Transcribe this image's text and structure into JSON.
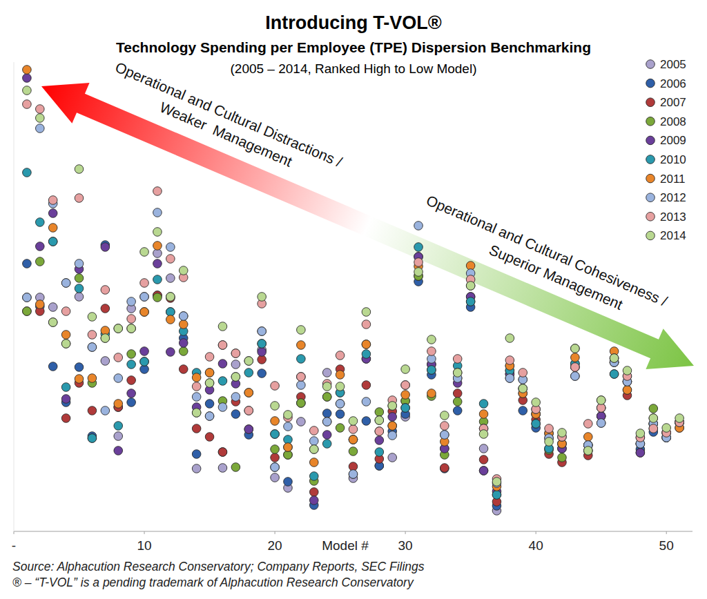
{
  "chart_data": {
    "type": "scatter",
    "title": "Introducing T-VOL®",
    "subtitle": [
      "Technology Spending per Employee (TPE) Dispersion Benchmarking",
      "(2005 – 2014, Ranked High to Low Model)"
    ],
    "x_label": "Model #",
    "annotations": [
      {
        "lines": [
          "Operational and Cultural Distractions /",
          "Weaker  Management"
        ]
      },
      {
        "lines": [
          "Operational and Cultural Cohesiveness /",
          "Superior Management"
        ]
      }
    ],
    "source": [
      "Source: Alphacution Research Conservatory; Company Reports, SEC Filings",
      "® – “T-VOL” is a pending trademark of Alphacution Research Conservatory"
    ],
    "x": [
      1,
      2,
      3,
      4,
      5,
      6,
      7,
      8,
      9,
      10,
      11,
      12,
      13,
      14,
      15,
      16,
      17,
      18,
      19,
      20,
      21,
      22,
      23,
      24,
      25,
      26,
      27,
      28,
      29,
      30,
      31,
      32,
      33,
      34,
      35,
      36,
      37,
      38,
      39,
      40,
      41,
      42,
      43,
      44,
      45,
      46,
      47,
      48,
      49,
      50,
      51
    ],
    "xlim": [
      0,
      52
    ],
    "xticks": [
      {
        "value": 0,
        "label": "-"
      },
      10,
      20,
      30,
      40,
      50
    ],
    "ylim": [
      0,
      68
    ],
    "tick_labels": "x",
    "grid": false,
    "legend": "top-right",
    "marker": "circle",
    "series": [
      {
        "name": "2005",
        "color": "#a9a1cc",
        "values": [
          33.9,
          33.9,
          32.5,
          36.0,
          34.0,
          26.7,
          24.7,
          13.8,
          32.3,
          34.0,
          40.3,
          36.7,
          31.2,
          9.1,
          16.7,
          9.2,
          24.2,
          17.5,
          26.3,
          7.8,
          6.3,
          15.9,
          11.9,
          23.0,
          18.5,
          7.7,
          25.0,
          9.5,
          10.7,
          16.6,
          39.8,
          24.2,
          12.0,
          22.2,
          35.6,
          12.0,
          3.0,
          22.8,
          22.0,
          17.0,
          13.5,
          12.7,
          22.5,
          12.5,
          15.7,
          24.5,
          21.7,
          12.7,
          14.9,
          13.6,
          15.8
        ]
      },
      {
        "name": "2006",
        "color": "#2f5fa8",
        "values": [
          38.8,
          32.6,
          23.9,
          18.7,
          23.8,
          13.8,
          41.5,
          18.0,
          18.7,
          23.5,
          34.2,
          31.8,
          28.0,
          11.2,
          18.5,
          11.5,
          17.0,
          14.0,
          22.9,
          9.3,
          7.2,
          18.6,
          3.8,
          17.1,
          17.0,
          8.3,
          16.0,
          9.5,
          14.5,
          17.0,
          36.2,
          22.7,
          9.1,
          17.5,
          32.5,
          8.8,
          3.7,
          22.2,
          17.5,
          15.0,
          12.0,
          12.0,
          23.8,
          11.7,
          16.7,
          22.8,
          21.7,
          11.9,
          14.4,
          13.6,
          15.8
        ]
      },
      {
        "name": "2007",
        "color": "#b03a3a",
        "values": [
          31.9,
          31.9,
          42.0,
          16.4,
          21.5,
          17.5,
          32.3,
          18.0,
          21.9,
          24.6,
          34.2,
          33.8,
          23.5,
          14.9,
          13.7,
          11.5,
          18.8,
          14.8,
          24.9,
          10.7,
          11.1,
          19.5,
          5.7,
          19.5,
          23.5,
          9.4,
          21.2,
          10.5,
          17.4,
          18.9,
          37.0,
          23.4,
          9.2,
          20.0,
          33.3,
          10.4,
          4.3,
          24.0,
          19.0,
          16.2,
          11.2,
          10.0,
          24.3,
          11.0,
          16.7,
          24.5,
          19.7,
          11.4,
          15.6,
          14.3,
          15.0
        ]
      },
      {
        "name": "2008",
        "color": "#7ba83a",
        "values": [
          31.9,
          39.1,
          30.3,
          27.2,
          36.7,
          21.5,
          28.0,
          29.4,
          25.7,
          31.8,
          33.9,
          34.0,
          26.1,
          17.2,
          21.5,
          18.9,
          9.3,
          20.1,
          27.2,
          11.9,
          11.1,
          18.6,
          7.3,
          19.5,
          15.0,
          11.6,
          27.1,
          17.3,
          18.2,
          18.9,
          37.0,
          19.6,
          11.1,
          18.8,
          34.0,
          15.9,
          5.3,
          23.3,
          20.7,
          17.0,
          11.8,
          10.7,
          26.5,
          11.7,
          17.9,
          25.1,
          20.5,
          12.7,
          17.8,
          14.3,
          15.8
        ]
      },
      {
        "name": "2009",
        "color": "#6a3f9a",
        "values": [
          65.7,
          41.3,
          46.1,
          19.2,
          38.0,
          13.5,
          41.2,
          11.7,
          20.0,
          26.1,
          38.8,
          26.0,
          27.3,
          18.0,
          20.5,
          24.3,
          21.4,
          14.8,
          26.0,
          14.1,
          12.2,
          22.4,
          4.5,
          14.0,
          20.1,
          13.3,
          25.0,
          13.2,
          16.6,
          17.9,
          39.8,
          24.2,
          12.0,
          21.5,
          34.0,
          8.8,
          5.8,
          22.8,
          20.0,
          15.6,
          14.2,
          12.0,
          23.8,
          12.5,
          16.7,
          24.5,
          21.7,
          11.4,
          15.6,
          13.6,
          15.8
        ]
      },
      {
        "name": "2010",
        "color": "#2a99ad",
        "values": [
          52.0,
          44.8,
          42.0,
          20.9,
          35.2,
          13.5,
          28.6,
          15.3,
          24.2,
          24.6,
          36.5,
          31.8,
          29.0,
          23.0,
          23.0,
          21.8,
          22.4,
          23.0,
          27.2,
          14.1,
          13.3,
          25.0,
          8.0,
          12.7,
          20.1,
          13.3,
          25.7,
          11.5,
          15.3,
          17.9,
          41.2,
          23.4,
          14.0,
          24.0,
          33.3,
          18.5,
          5.3,
          23.3,
          20.7,
          15.6,
          12.0,
          12.7,
          24.3,
          12.5,
          17.9,
          22.8,
          22.5,
          12.7,
          15.6,
          13.6,
          15.8
        ]
      },
      {
        "name": "2011",
        "color": "#e8852a",
        "values": [
          66.9,
          32.9,
          44.0,
          28.5,
          22.1,
          22.2,
          29.1,
          18.5,
          29.4,
          31.8,
          41.4,
          30.7,
          30.0,
          22.3,
          23.0,
          27.0,
          25.8,
          20.1,
          29.0,
          16.0,
          12.2,
          27.0,
          10.0,
          15.9,
          22.7,
          13.3,
          27.1,
          14.5,
          15.3,
          19.8,
          38.4,
          20.0,
          13.0,
          23.0,
          38.5,
          17.0,
          6.5,
          24.0,
          20.0,
          17.0,
          14.2,
          12.7,
          25.2,
          13.7,
          19.0,
          26.1,
          20.5,
          13.6,
          16.4,
          14.3,
          15.0
        ]
      },
      {
        "name": "2012",
        "color": "#9ab3de",
        "values": [
          33.9,
          58.4,
          47.5,
          36.0,
          38.8,
          26.7,
          17.5,
          22.2,
          33.3,
          34.0,
          46.2,
          41.2,
          31.2,
          19.5,
          16.7,
          18.0,
          19.5,
          24.7,
          29.0,
          9.3,
          15.2,
          21.2,
          13.1,
          15.9,
          18.5,
          8.3,
          18.8,
          16.1,
          13.9,
          21.2,
          44.3,
          25.0,
          14.0,
          22.2,
          37.4,
          14.9,
          7.0,
          22.2,
          22.0,
          17.7,
          13.5,
          13.7,
          22.5,
          12.5,
          15.7,
          24.5,
          21.7,
          12.7,
          15.6,
          13.6,
          15.8
        ]
      },
      {
        "name": "2013",
        "color": "#e6a0a0",
        "values": [
          61.9,
          61.2,
          48.0,
          31.9,
          48.3,
          28.5,
          35.0,
          25.2,
          30.8,
          36.0,
          49.3,
          39.5,
          36.8,
          21.0,
          25.3,
          27.0,
          25.8,
          17.5,
          33.0,
          21.1,
          16.5,
          22.4,
          14.6,
          21.4,
          25.5,
          14.8,
          30.0,
          14.5,
          19.0,
          21.2,
          39.0,
          26.1,
          15.3,
          25.0,
          36.5,
          14.9,
          7.6,
          24.8,
          23.0,
          17.7,
          14.9,
          13.7,
          23.8,
          15.6,
          17.9,
          25.1,
          22.5,
          13.6,
          14.9,
          14.3,
          15.8
        ]
      },
      {
        "name": "2014",
        "color": "#b9d891",
        "values": [
          63.9,
          59.9,
          30.3,
          27.2,
          52.5,
          31.1,
          28.0,
          29.4,
          29.4,
          40.5,
          43.4,
          34.0,
          37.8,
          17.2,
          21.5,
          29.7,
          22.4,
          24.7,
          34.0,
          18.2,
          16.9,
          29.2,
          11.9,
          21.0,
          21.0,
          16.0,
          31.8,
          16.1,
          18.2,
          23.5,
          37.6,
          27.8,
          16.8,
          23.0,
          35.6,
          14.1,
          7.2,
          28.0,
          20.7,
          18.7,
          13.0,
          14.3,
          26.5,
          11.7,
          19.0,
          25.1,
          23.3,
          14.2,
          16.4,
          15.0,
          16.4
        ]
      }
    ]
  }
}
